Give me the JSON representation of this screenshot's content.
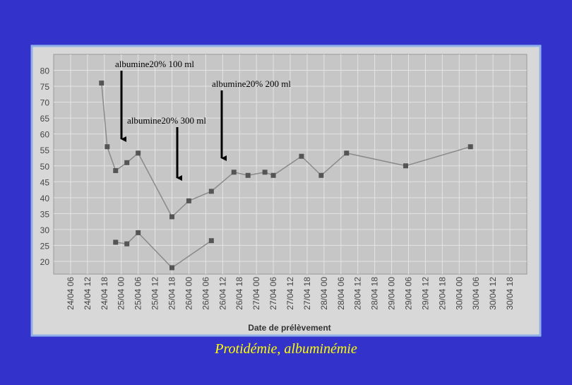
{
  "chart_data": {
    "type": "line",
    "caption": "Protidémie, albuminémie",
    "x_label": "Date de prélèvement",
    "annotations": [
      "albumine20% 100 ml",
      "albumine20% 200 ml",
      "albumine20% 300 ml"
    ],
    "xlim": [
      0,
      168
    ],
    "ylim": [
      16,
      85
    ],
    "yticks": [
      20,
      25,
      30,
      35,
      40,
      45,
      50,
      55,
      60,
      65,
      70,
      75,
      80
    ],
    "xticks": [
      {
        "value": 6,
        "label": "24/04 06"
      },
      {
        "value": 12,
        "label": "24/04 12"
      },
      {
        "value": 18,
        "label": "24/04 18"
      },
      {
        "value": 24,
        "label": "25/04 00"
      },
      {
        "value": 30,
        "label": "25/04 06"
      },
      {
        "value": 36,
        "label": "25/04 12"
      },
      {
        "value": 42,
        "label": "25/04 18"
      },
      {
        "value": 48,
        "label": "26/04 00"
      },
      {
        "value": 54,
        "label": "26/04 06"
      },
      {
        "value": 60,
        "label": "26/04 12"
      },
      {
        "value": 66,
        "label": "26/04 18"
      },
      {
        "value": 72,
        "label": "27/04 00"
      },
      {
        "value": 78,
        "label": "27/04 06"
      },
      {
        "value": 84,
        "label": "27/04 12"
      },
      {
        "value": 90,
        "label": "27/04 18"
      },
      {
        "value": 96,
        "label": "28/04 00"
      },
      {
        "value": 102,
        "label": "28/04 06"
      },
      {
        "value": 108,
        "label": "28/04 12"
      },
      {
        "value": 114,
        "label": "28/04 18"
      },
      {
        "value": 120,
        "label": "29/04 00"
      },
      {
        "value": 126,
        "label": "29/04 06"
      },
      {
        "value": 132,
        "label": "29/04 12"
      },
      {
        "value": 138,
        "label": "29/04 18"
      },
      {
        "value": 144,
        "label": "30/04 00"
      },
      {
        "value": 150,
        "label": "30/04 06"
      },
      {
        "value": 156,
        "label": "30/04 12"
      },
      {
        "value": 162,
        "label": "30/04 18"
      }
    ],
    "grid": true,
    "series": [
      {
        "color": "#555555",
        "x": [
          17,
          19,
          22,
          26,
          30,
          42,
          48,
          56,
          64,
          69,
          75,
          78,
          88,
          95,
          104,
          125,
          148
        ],
        "values": [
          76,
          56,
          48.5,
          51,
          54,
          34,
          39,
          42,
          48,
          47,
          48,
          47,
          53,
          47,
          54,
          50,
          56
        ]
      },
      {
        "color": "#555555",
        "x": [
          22,
          26,
          30,
          42,
          56
        ],
        "values": [
          26,
          25.5,
          29,
          18,
          26.5
        ]
      }
    ]
  }
}
